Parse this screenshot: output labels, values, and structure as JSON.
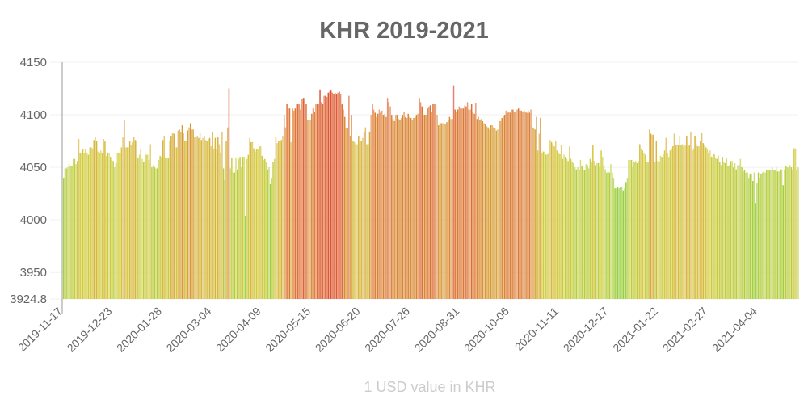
{
  "chart_data": {
    "type": "bar",
    "title": "KHR 2019-2021",
    "xlabel": "1 USD value in KHR",
    "ylabel": "",
    "ylim": [
      3924.8,
      4150
    ],
    "yticks": [
      "4150",
      "4100",
      "4050",
      "4000",
      "3950",
      "3924.8"
    ],
    "ytick_values": [
      4150,
      4100,
      4050,
      4000,
      3950,
      3924.8
    ],
    "xticks": [
      "2019-11-17",
      "2019-12-23",
      "2020-01-28",
      "2020-03-04",
      "2020-04-09",
      "2020-05-15",
      "2020-06-20",
      "2020-07-26",
      "2020-08-31",
      "2020-10-06",
      "2020-11-11",
      "2020-12-17",
      "2021-01-22",
      "2021-02-27",
      "2021-04-04"
    ],
    "xtick_every_days": 36,
    "grid": true,
    "color_low": "#6fd13f",
    "color_mid": "#d4cc3c",
    "color_high": "#e0492f",
    "values": [
      4040,
      4049,
      4049,
      4050,
      4053,
      4051,
      4051,
      4058,
      4058,
      4053,
      4056,
      4077,
      4064,
      4064,
      4067,
      4064,
      4067,
      4064,
      4062,
      4069,
      4069,
      4068,
      4076,
      4079,
      4075,
      4065,
      4064,
      4066,
      4064,
      4077,
      4075,
      4061,
      4064,
      4064,
      4060,
      4057,
      4056,
      4050,
      4054,
      4064,
      4064,
      4064,
      4069,
      4079,
      4095,
      4069,
      4069,
      4069,
      4075,
      4071,
      4074,
      4079,
      4076,
      4075,
      4059,
      4062,
      4067,
      4058,
      4055,
      4056,
      4062,
      4062,
      4057,
      4072,
      4050,
      4052,
      4050,
      4049,
      4049,
      4057,
      4061,
      4060,
      4076,
      4080,
      4059,
      4059,
      4059,
      4075,
      4080,
      4083,
      4082,
      4069,
      4069,
      4085,
      4086,
      4084,
      4090,
      4083,
      4075,
      4075,
      4085,
      4088,
      4092,
      4086,
      4086,
      4079,
      4079,
      4080,
      4078,
      4083,
      4076,
      4078,
      4080,
      4076,
      4075,
      4077,
      4078,
      4070,
      4084,
      4068,
      4078,
      4067,
      4079,
      4072,
      4064,
      4084,
      4049,
      4038,
      4075,
      4088,
      4125,
      4049,
      4059,
      4045,
      4045,
      4059,
      4048,
      4058,
      4060,
      4050,
      4060,
      4060,
      4004,
      4058,
      4062,
      4078,
      4074,
      4074,
      4068,
      4065,
      4067,
      4067,
      4070,
      4070,
      4061,
      4057,
      4058,
      4055,
      4048,
      4050,
      4034,
      4040,
      4055,
      4058,
      4079,
      4073,
      4075,
      4075,
      4076,
      4080,
      4100,
      4088,
      4110,
      4106,
      4106,
      4074,
      4106,
      4104,
      4106,
      4110,
      4110,
      4110,
      4105,
      4115,
      4116,
      4116,
      4110,
      4095,
      4095,
      4095,
      4101,
      4106,
      4103,
      4110,
      4110,
      4110,
      4124,
      4112,
      4110,
      4118,
      4118,
      4117,
      4121,
      4122,
      4123,
      4121,
      4120,
      4121,
      4120,
      4121,
      4122,
      4120,
      4110,
      4105,
      4098,
      4087,
      4087,
      4118,
      4080,
      4100,
      4075,
      4074,
      4072,
      4072,
      4080,
      4075,
      4075,
      4078,
      4084,
      4088,
      4072,
      4072,
      4084,
      4100,
      4110,
      4105,
      4102,
      4098,
      4101,
      4105,
      4102,
      4104,
      4100,
      4101,
      4098,
      4116,
      4112,
      4108,
      4100,
      4096,
      4094,
      4100,
      4100,
      4096,
      4095,
      4097,
      4100,
      4103,
      4098,
      4097,
      4101,
      4098,
      4097,
      4095,
      4097,
      4098,
      4100,
      4101,
      4116,
      4112,
      4108,
      4100,
      4100,
      4100,
      4106,
      4107,
      4109,
      4103,
      4110,
      4110,
      4110,
      4100,
      4090,
      4092,
      4092,
      4092,
      4091,
      4091,
      4093,
      4095,
      4098,
      4096,
      4096,
      4128,
      4105,
      4103,
      4105,
      4108,
      4106,
      4106,
      4106,
      4109,
      4108,
      4112,
      4105,
      4105,
      4110,
      4103,
      4101,
      4111,
      4096,
      4098,
      4095,
      4096,
      4094,
      4092,
      4091,
      4089,
      4088,
      4086,
      4090,
      4090,
      4088,
      4087,
      4085,
      4086,
      4094,
      4094,
      4097,
      4099,
      4100,
      4104,
      4102,
      4103,
      4102,
      4105,
      4105,
      4103,
      4103,
      4105,
      4106,
      4104,
      4104,
      4103,
      4104,
      4103,
      4102,
      4104,
      4102,
      4105,
      4088,
      4087,
      4086,
      4098,
      4066,
      4082,
      4097,
      4064,
      4065,
      4065,
      4062,
      4063,
      4064,
      4076,
      4074,
      4072,
      4070,
      4075,
      4066,
      4064,
      4063,
      4071,
      4058,
      4062,
      4060,
      4058,
      4056,
      4070,
      4058,
      4055,
      4054,
      4050,
      4048,
      4050,
      4047,
      4057,
      4051,
      4047,
      4047,
      4053,
      4052,
      4049,
      4058,
      4055,
      4071,
      4056,
      4052,
      4054,
      4054,
      4050,
      4066,
      4060,
      4052,
      4048,
      4045,
      4046,
      4045,
      4053,
      4045,
      4040,
      4030,
      4030,
      4031,
      4030,
      4031,
      4031,
      4028,
      4030,
      4036,
      4040,
      4057,
      4057,
      4057,
      4050,
      4055,
      4056,
      4054,
      4056,
      4072,
      4068,
      4066,
      4064,
      4062,
      4055,
      4055,
      4086,
      4082,
      4081,
      4081,
      4055,
      4075,
      4056,
      4055,
      4061,
      4060,
      4063,
      4066,
      4078,
      4064,
      4060,
      4066,
      4068,
      4070,
      4082,
      4071,
      4071,
      4071,
      4080,
      4071,
      4072,
      4070,
      4071,
      4080,
      4070,
      4071,
      4084,
      4066,
      4068,
      4080,
      4072,
      4070,
      4070,
      4075,
      4083,
      4073,
      4071,
      4069,
      4067,
      4064,
      4066,
      4060,
      4060,
      4063,
      4059,
      4058,
      4061,
      4055,
      4052,
      4060,
      4055,
      4054,
      4059,
      4051,
      4052,
      4056,
      4056,
      4050,
      4054,
      4048,
      4052,
      4052,
      4058,
      4050,
      4046,
      4047,
      4045,
      4045,
      4040,
      4044,
      4044,
      4037,
      4045,
      4016,
      4035,
      4045,
      4040,
      4044,
      4045,
      4046,
      4045,
      4047,
      4048,
      4047,
      4048,
      4050,
      4047,
      4047,
      4050,
      4046,
      4046,
      4048,
      4048,
      4033,
      4048,
      4051,
      4050,
      4050,
      4052,
      4050,
      4048,
      4068,
      4068,
      4048,
      4050
    ]
  }
}
